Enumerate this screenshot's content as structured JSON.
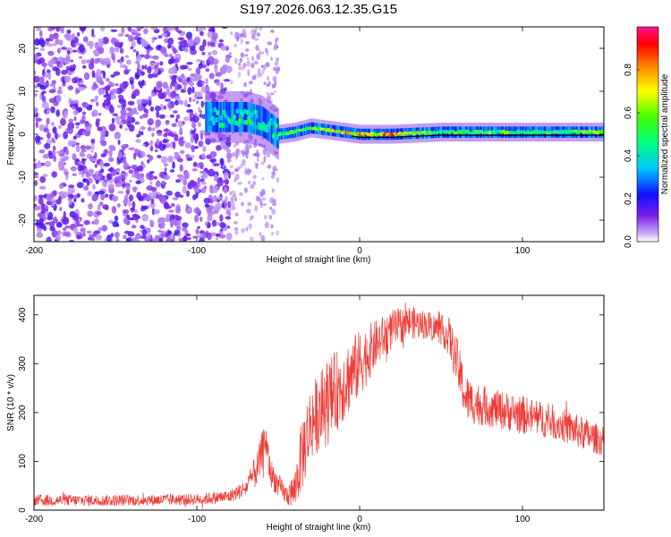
{
  "title": "S197.2026.063.12.35.G15",
  "chart_data": [
    {
      "type": "heatmap",
      "xlabel": "Height of straight line (km)",
      "ylabel": "Frequency (Hz)",
      "xlim": [
        -200,
        150
      ],
      "ylim": [
        -25,
        25
      ],
      "xticks": [
        -200,
        -100,
        0,
        100
      ],
      "yticks": [
        20,
        10,
        0,
        -10,
        -20
      ],
      "colorbar": {
        "label": "Normalized spectral amplitude",
        "range": [
          0.0,
          1.0
        ],
        "ticks": [
          "0.0",
          "0.2",
          "0.4",
          "0.6",
          "0.8"
        ]
      },
      "ridge": [
        {
          "x": -85,
          "y": 4,
          "amp": 0.5
        },
        {
          "x": -70,
          "y": 4,
          "amp": 0.6
        },
        {
          "x": -60,
          "y": 3,
          "amp": 0.5
        },
        {
          "x": -50,
          "y": 0,
          "amp": 0.6
        },
        {
          "x": -40,
          "y": 0.5,
          "amp": 0.7
        },
        {
          "x": -30,
          "y": 1.5,
          "amp": 0.7
        },
        {
          "x": -20,
          "y": 1,
          "amp": 0.8
        },
        {
          "x": -10,
          "y": 0.5,
          "amp": 0.85
        },
        {
          "x": 0,
          "y": 0,
          "amp": 0.9
        },
        {
          "x": 20,
          "y": 0,
          "amp": 1.0
        },
        {
          "x": 50,
          "y": 0.5,
          "amp": 0.6
        },
        {
          "x": 80,
          "y": 0.5,
          "amp": 0.7
        },
        {
          "x": 100,
          "y": 0.5,
          "amp": 0.6
        },
        {
          "x": 140,
          "y": 0.5,
          "amp": 0.7
        }
      ]
    },
    {
      "type": "line",
      "xlabel": "Height of straight line (km)",
      "ylabel": "SNR (10 * v/v)",
      "xlim": [
        -200,
        150
      ],
      "ylim": [
        0,
        440
      ],
      "xticks": [
        -200,
        -100,
        0,
        100
      ],
      "yticks": [
        0,
        100,
        200,
        300,
        400
      ],
      "color": "#ef3b36",
      "envelope": {
        "x": [
          -200,
          -150,
          -100,
          -80,
          -70,
          -62,
          -58,
          -55,
          -50,
          -45,
          -40,
          -35,
          -30,
          -25,
          -20,
          -10,
          0,
          10,
          20,
          30,
          40,
          50,
          55,
          60,
          65,
          70,
          80,
          100,
          120,
          135,
          150
        ],
        "mean": [
          20,
          20,
          22,
          28,
          45,
          90,
          150,
          80,
          50,
          30,
          40,
          120,
          180,
          200,
          220,
          260,
          300,
          340,
          370,
          385,
          380,
          370,
          355,
          300,
          230,
          220,
          210,
          195,
          180,
          160,
          140
        ],
        "amp": [
          12,
          12,
          12,
          14,
          18,
          40,
          40,
          30,
          25,
          20,
          40,
          80,
          80,
          80,
          90,
          80,
          70,
          50,
          40,
          35,
          30,
          30,
          40,
          50,
          50,
          45,
          40,
          40,
          35,
          35,
          30
        ]
      }
    }
  ]
}
